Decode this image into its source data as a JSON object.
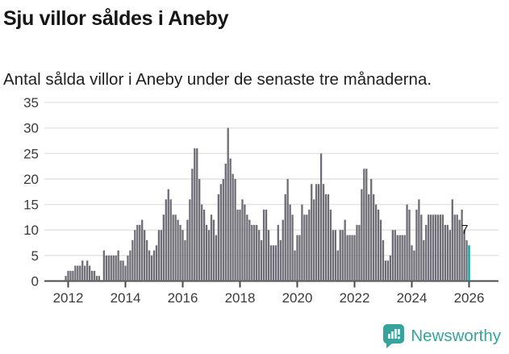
{
  "header": {
    "title": "Sju villor såldes i Aneby",
    "subtitle": "Antal sålda villor i Aneby under de senaste tre månaderna."
  },
  "chart_data": {
    "type": "bar",
    "title": "Sju villor såldes i Aneby",
    "subtitle": "Antal sålda villor i Aneby under de senaste tre månaderna.",
    "ylabel": "",
    "xlabel": "",
    "unit": "sålda villor per månad",
    "start": "2011-12",
    "end": "2026-01",
    "values": [
      1,
      2,
      2,
      2,
      3,
      3,
      3,
      4,
      3,
      4,
      3,
      2,
      2,
      1,
      1,
      0,
      6,
      5,
      5,
      5,
      5,
      5,
      6,
      4,
      4,
      3,
      5,
      6,
      8,
      10,
      11,
      11,
      12,
      10,
      8,
      6,
      5,
      6,
      7,
      10,
      10,
      13,
      16,
      18,
      16,
      13,
      13,
      12,
      11,
      10,
      8,
      12,
      16,
      22,
      26,
      26,
      20,
      15,
      14,
      11,
      10,
      13,
      12,
      9,
      17,
      19,
      20,
      23,
      30,
      24,
      21,
      20,
      14,
      14,
      16,
      15,
      13,
      12,
      11,
      11,
      11,
      10,
      8,
      14,
      14,
      10,
      7,
      7,
      7,
      11,
      8,
      12,
      17,
      20,
      15,
      13,
      6,
      9,
      9,
      15,
      13,
      13,
      14,
      19,
      16,
      19,
      19,
      25,
      19,
      17,
      17,
      14,
      10,
      10,
      6,
      10,
      10,
      12,
      9,
      9,
      9,
      9,
      11,
      11,
      18,
      22,
      22,
      17,
      20,
      17,
      15,
      14,
      12,
      8,
      4,
      4,
      5,
      10,
      10,
      9,
      9,
      9,
      9,
      15,
      14,
      7,
      6,
      14,
      16,
      13,
      8,
      11,
      13,
      13,
      13,
      13,
      13,
      13,
      13,
      11,
      11,
      10,
      16,
      13,
      13,
      12,
      14,
      10,
      8,
      7
    ],
    "highlight": {
      "index": 169,
      "value": 7,
      "label": "7"
    },
    "ylim": [
      0,
      35
    ],
    "yticks": [
      0,
      5,
      10,
      15,
      20,
      25,
      30,
      35
    ],
    "xticks": [
      2012,
      2014,
      2016,
      2018,
      2020,
      2022,
      2024,
      2026
    ],
    "grid": true,
    "legend": "none"
  },
  "colors": {
    "bar": "#6e6d76",
    "highlight": "#00a19e",
    "grid": "#e6e6e6",
    "axis": "#4a4a4a",
    "tick_label": "#3b3b3b",
    "annotation": "#141414",
    "brand": "#36a49c",
    "icon_glyph": "#ffffff"
  },
  "footer": {
    "brand_name": "Newsworthy",
    "logo_icon": "bar-chart-speech-bubble-icon"
  }
}
